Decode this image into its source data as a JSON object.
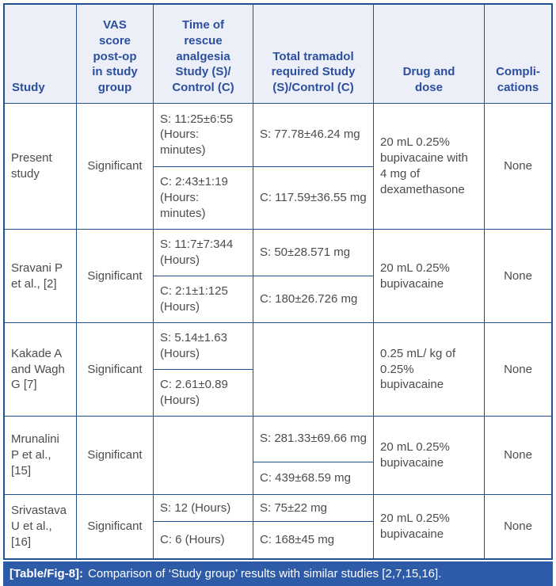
{
  "header": {
    "study": "Study",
    "vas": "VAS score post-op in study group",
    "time": "Time of rescue analgesia Study (S)/ Control (C)",
    "tramadol": "Total tramadol required Study (S)/Control (C)",
    "drug": "Drug and dose",
    "complications": "Compli-cations"
  },
  "rows": [
    {
      "study": "Present study",
      "vas": "Significant",
      "time_s": "S: 11:25±6:55 (Hours: minutes)",
      "time_c": "C: 2:43±1:19 (Hours: minutes)",
      "tramadol_s": "S: 77.78±46.24 mg",
      "tramadol_c": "C: 117.59±36.55 mg",
      "drug": "20 mL 0.25% bupivacaine with 4 mg of dexamethasone",
      "complications": "None"
    },
    {
      "study": "Sravani P et al., [2]",
      "vas": "Significant",
      "time_s": "S: 11:7±7:344 (Hours)",
      "time_c": "C: 2:1±1:125 (Hours)",
      "tramadol_s": "S: 50±28.571 mg",
      "tramadol_c": "C: 180±26.726 mg",
      "drug": "20 mL 0.25% bupivacaine",
      "complications": "None"
    },
    {
      "study": "Kakade A and Wagh G [7]",
      "vas": "Significant",
      "time_s": "S: 5.14±1.63 (Hours)",
      "time_c": "C: 2.61±0.89 (Hours)",
      "tramadol": "",
      "drug": "0.25 mL/ kg of 0.25% bupivacaine",
      "complications": "None"
    },
    {
      "study": "Mrunalini P et al., [15]",
      "vas": "Significant",
      "time": "",
      "tramadol_s": "S: 281.33±69.66 mg",
      "tramadol_c": "C: 439±68.59 mg",
      "drug": "20 mL 0.25% bupivacaine",
      "complications": "None"
    },
    {
      "study": "Srivastava U et al., [16]",
      "vas": "Significant",
      "time_s": "S: 12 (Hours)",
      "time_c": "C: 6 (Hours)",
      "tramadol_s": "S: 75±22 mg",
      "tramadol_c": "C: 168±45 mg",
      "drug": "20 mL 0.25% bupivacaine",
      "complications": "None"
    }
  ],
  "caption": {
    "label": "[Table/Fig-8]:",
    "text": "Comparison of ‘Study group’ results with similar studies [2,7,15,16]."
  },
  "colors": {
    "border": "#24518f",
    "header_bg": "#edeff8",
    "header_text": "#2b4f9e",
    "body_text": "#4c4c4c",
    "caption_bg": "#2e5ba8",
    "caption_text": "#ffffff"
  }
}
